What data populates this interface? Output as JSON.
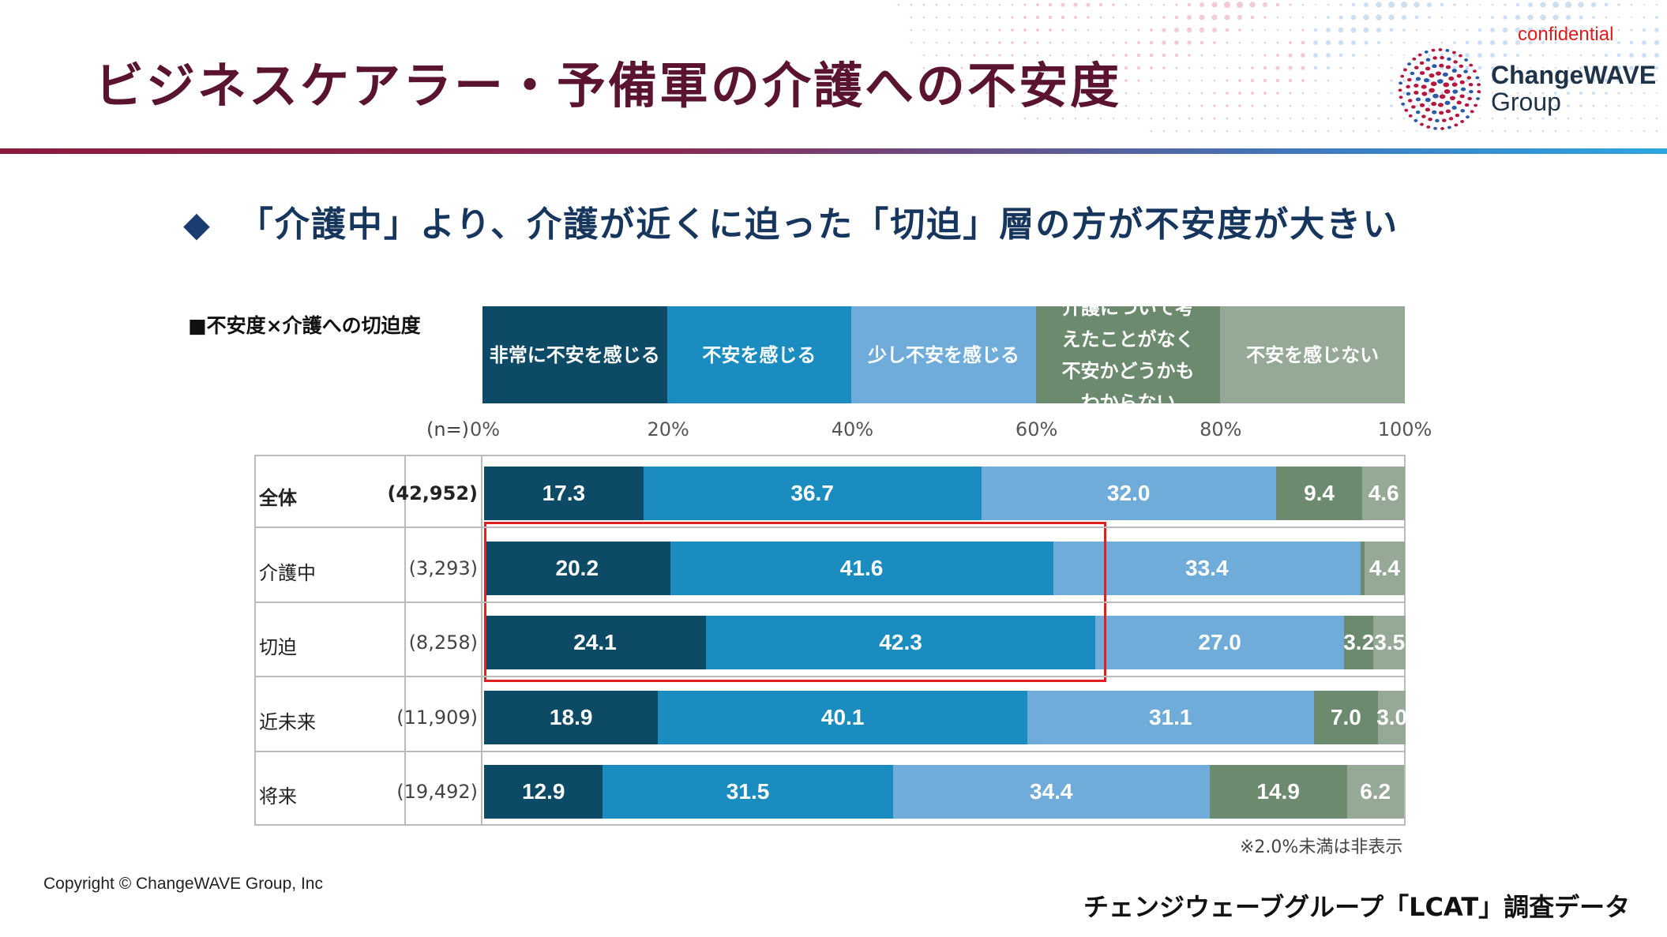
{
  "header": {
    "title": "ビジネスケアラー・予備軍の介護への不安度",
    "confidential": "confidential",
    "brand_line1": "ChangeWAVE",
    "brand_line2": "Group"
  },
  "subtitle": {
    "bullet": "◆",
    "text": "「介護中」より、介護が近くに迫った「切迫」層の方が不安度が大きい"
  },
  "chart_label": "■不安度×介護への切迫度",
  "footer": {
    "note": "※2.0%未満は非表示",
    "copyright": "Copyright © ChangeWAVE Group, Inc",
    "source": "チェンジウェーブグループ「LCAT」調査データ"
  },
  "chart_data": {
    "type": "bar",
    "orientation": "horizontal-stacked-100",
    "title": "不安度×介護への切迫度",
    "n_label": "(n=)",
    "xlim": [
      0,
      100
    ],
    "x_ticks": [
      "0%",
      "20%",
      "40%",
      "60%",
      "80%",
      "100%"
    ],
    "series": [
      {
        "name": "非常に不安を感じる",
        "color": "#0d4a66"
      },
      {
        "name": "不安を感じる",
        "color": "#1a8cc0"
      },
      {
        "name": "少し不安を感じる",
        "color": "#70acd9"
      },
      {
        "name": "介護について考えたことがなく不安かどうかもわからない",
        "color": "#6b8a6e"
      },
      {
        "name": "不安を感じない",
        "color": "#96a896"
      }
    ],
    "rows": [
      {
        "label": "全体",
        "n": "(42,952)",
        "bold": true,
        "values": [
          17.3,
          36.7,
          32.0,
          9.4,
          4.6
        ],
        "labels": [
          "17.3",
          "36.7",
          "32.0",
          "9.4",
          "4.6"
        ]
      },
      {
        "label": "介護中",
        "n": "(3,293)",
        "bold": false,
        "values": [
          20.2,
          41.6,
          33.4,
          0.4,
          4.4
        ],
        "labels": [
          "20.2",
          "41.6",
          "33.4",
          "",
          "4.4"
        ]
      },
      {
        "label": "切迫",
        "n": "(8,258)",
        "bold": false,
        "values": [
          24.1,
          42.3,
          27.0,
          3.2,
          3.5
        ],
        "labels": [
          "24.1",
          "42.3",
          "27.0",
          "3.2",
          "3.5"
        ]
      },
      {
        "label": "近未来",
        "n": "(11,909)",
        "bold": false,
        "values": [
          18.9,
          40.1,
          31.1,
          7.0,
          3.0
        ],
        "labels": [
          "18.9",
          "40.1",
          "31.1",
          "7.0",
          "3.0"
        ]
      },
      {
        "label": "将来",
        "n": "(19,492)",
        "bold": false,
        "values": [
          12.9,
          31.5,
          34.4,
          14.9,
          6.2
        ],
        "labels": [
          "12.9",
          "31.5",
          "34.4",
          "14.9",
          "6.2"
        ]
      }
    ]
  }
}
